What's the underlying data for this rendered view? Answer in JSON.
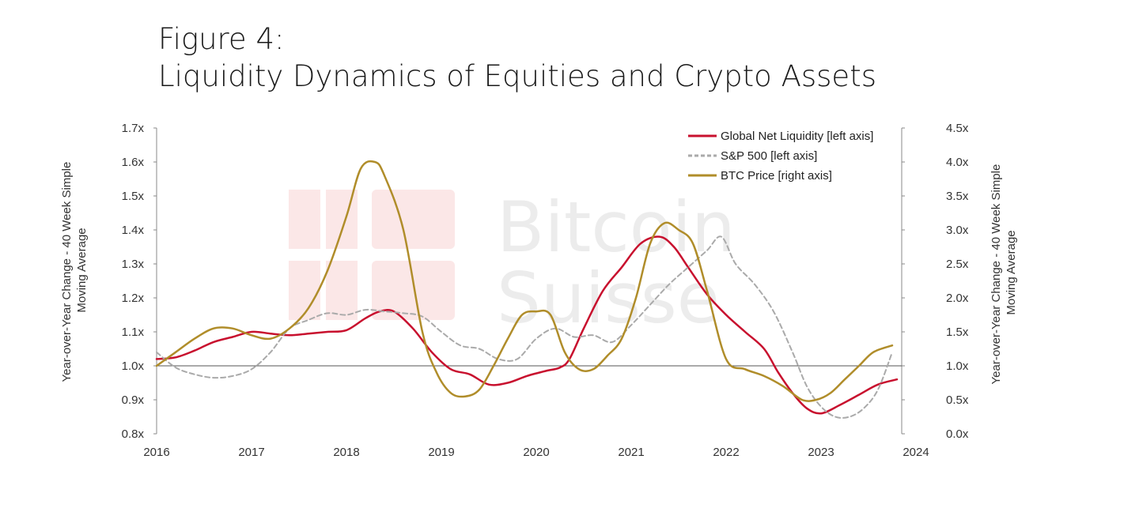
{
  "figure": {
    "title_line1": "Figure 4:",
    "title_line2": "Liquidity Dynamics of Equities and Crypto Assets"
  },
  "watermark": {
    "line1": "Bitcoin",
    "line2": "Suisse"
  },
  "chart_data": {
    "type": "line",
    "title": "Liquidity Dynamics of Equities and Crypto Assets",
    "xlabel": "",
    "ylabel_left": "Year-over-Year Change - 40 Week Simple Moving Average",
    "ylabel_right": "Year-over-Year Change - 40 Week Simple Moving Average",
    "xlim": [
      2016.0,
      2023.85
    ],
    "ylim_left": [
      0.8,
      1.7
    ],
    "ylim_right": [
      0.0,
      4.5
    ],
    "x_ticks": [
      {
        "value": 2016.0,
        "label": "2016"
      },
      {
        "value": 2017.0,
        "label": "2017"
      },
      {
        "value": 2018.0,
        "label": "2018"
      },
      {
        "value": 2019.0,
        "label": "2019"
      },
      {
        "value": 2020.0,
        "label": "2020"
      },
      {
        "value": 2021.0,
        "label": "2021"
      },
      {
        "value": 2022.0,
        "label": "2022"
      },
      {
        "value": 2023.0,
        "label": "2023"
      },
      {
        "value": 2024.0,
        "label": "2024"
      }
    ],
    "y_ticks_left": [
      {
        "value": 0.8,
        "label": "0.8x"
      },
      {
        "value": 0.9,
        "label": "0.9x"
      },
      {
        "value": 1.0,
        "label": "1.0x"
      },
      {
        "value": 1.1,
        "label": "1.1x"
      },
      {
        "value": 1.2,
        "label": "1.2x"
      },
      {
        "value": 1.3,
        "label": "1.3x"
      },
      {
        "value": 1.4,
        "label": "1.4x"
      },
      {
        "value": 1.5,
        "label": "1.5x"
      },
      {
        "value": 1.6,
        "label": "1.6x"
      },
      {
        "value": 1.7,
        "label": "1.7x"
      }
    ],
    "y_ticks_right": [
      {
        "value": 0.0,
        "label": "0.0x"
      },
      {
        "value": 0.5,
        "label": "0.5x"
      },
      {
        "value": 1.0,
        "label": "1.0x"
      },
      {
        "value": 1.5,
        "label": "1.5x"
      },
      {
        "value": 2.0,
        "label": "2.0x"
      },
      {
        "value": 2.5,
        "label": "2.5x"
      },
      {
        "value": 3.0,
        "label": "3.0x"
      },
      {
        "value": 3.5,
        "label": "3.5x"
      },
      {
        "value": 4.0,
        "label": "4.0x"
      },
      {
        "value": 4.5,
        "label": "4.5x"
      }
    ],
    "reference_line_left": 1.0,
    "legend_position": "top-right",
    "series": [
      {
        "name": "Global Net Liquidity [left axis]",
        "axis": "left",
        "color": "#c8102e",
        "style": "solid",
        "x": [
          2016.0,
          2016.2,
          2016.4,
          2016.6,
          2016.8,
          2017.0,
          2017.2,
          2017.4,
          2017.6,
          2017.8,
          2018.0,
          2018.2,
          2018.35,
          2018.5,
          2018.7,
          2018.9,
          2019.1,
          2019.3,
          2019.5,
          2019.7,
          2019.9,
          2020.1,
          2020.25,
          2020.35,
          2020.5,
          2020.7,
          2020.9,
          2021.1,
          2021.3,
          2021.45,
          2021.6,
          2021.8,
          2022.0,
          2022.2,
          2022.4,
          2022.55,
          2022.7,
          2022.85,
          2023.0,
          2023.2,
          2023.4,
          2023.6,
          2023.8
        ],
        "y": [
          1.02,
          1.025,
          1.045,
          1.07,
          1.085,
          1.1,
          1.095,
          1.09,
          1.095,
          1.1,
          1.105,
          1.14,
          1.16,
          1.16,
          1.11,
          1.04,
          0.99,
          0.975,
          0.945,
          0.95,
          0.97,
          0.985,
          0.995,
          1.02,
          1.11,
          1.22,
          1.29,
          1.36,
          1.38,
          1.35,
          1.29,
          1.21,
          1.15,
          1.1,
          1.05,
          0.98,
          0.92,
          0.875,
          0.86,
          0.885,
          0.915,
          0.945,
          0.96
        ]
      },
      {
        "name": "S&P 500 [left axis]",
        "axis": "left",
        "color": "#aaaaaa",
        "style": "dashed",
        "x": [
          2016.0,
          2016.2,
          2016.4,
          2016.6,
          2016.8,
          2017.0,
          2017.2,
          2017.4,
          2017.6,
          2017.8,
          2018.0,
          2018.2,
          2018.4,
          2018.6,
          2018.8,
          2019.0,
          2019.2,
          2019.4,
          2019.6,
          2019.8,
          2020.0,
          2020.2,
          2020.4,
          2020.6,
          2020.8,
          2021.0,
          2021.2,
          2021.4,
          2021.6,
          2021.8,
          2021.95,
          2022.1,
          2022.3,
          2022.5,
          2022.7,
          2022.85,
          2023.0,
          2023.15,
          2023.3,
          2023.45,
          2023.6,
          2023.75
        ],
        "y": [
          1.04,
          0.995,
          0.975,
          0.965,
          0.97,
          0.99,
          1.04,
          1.11,
          1.135,
          1.155,
          1.15,
          1.165,
          1.16,
          1.155,
          1.145,
          1.1,
          1.06,
          1.05,
          1.02,
          1.02,
          1.08,
          1.11,
          1.085,
          1.09,
          1.07,
          1.12,
          1.18,
          1.24,
          1.29,
          1.34,
          1.38,
          1.3,
          1.24,
          1.16,
          1.04,
          0.94,
          0.88,
          0.85,
          0.85,
          0.875,
          0.93,
          1.04
        ]
      },
      {
        "name": "BTC Price [right axis]",
        "axis": "right",
        "color": "#b08d2a",
        "style": "solid",
        "x": [
          2016.0,
          2016.2,
          2016.4,
          2016.6,
          2016.8,
          2017.0,
          2017.2,
          2017.4,
          2017.6,
          2017.8,
          2018.0,
          2018.15,
          2018.3,
          2018.4,
          2018.6,
          2018.8,
          2018.95,
          2019.1,
          2019.25,
          2019.4,
          2019.55,
          2019.7,
          2019.85,
          2020.0,
          2020.15,
          2020.3,
          2020.45,
          2020.6,
          2020.75,
          2020.9,
          2021.05,
          2021.2,
          2021.35,
          2021.5,
          2021.65,
          2021.8,
          2022.0,
          2022.2,
          2022.4,
          2022.6,
          2022.8,
          2022.95,
          2023.1,
          2023.25,
          2023.4,
          2023.55,
          2023.75
        ],
        "y": [
          1.0,
          1.2,
          1.4,
          1.55,
          1.55,
          1.45,
          1.4,
          1.55,
          1.85,
          2.4,
          3.2,
          3.9,
          4.0,
          3.8,
          3.0,
          1.5,
          0.9,
          0.6,
          0.55,
          0.65,
          1.0,
          1.4,
          1.75,
          1.8,
          1.75,
          1.2,
          0.95,
          0.95,
          1.15,
          1.4,
          2.0,
          2.8,
          3.1,
          3.0,
          2.8,
          2.1,
          1.1,
          0.95,
          0.85,
          0.7,
          0.5,
          0.5,
          0.6,
          0.8,
          1.0,
          1.2,
          1.3
        ]
      }
    ]
  }
}
